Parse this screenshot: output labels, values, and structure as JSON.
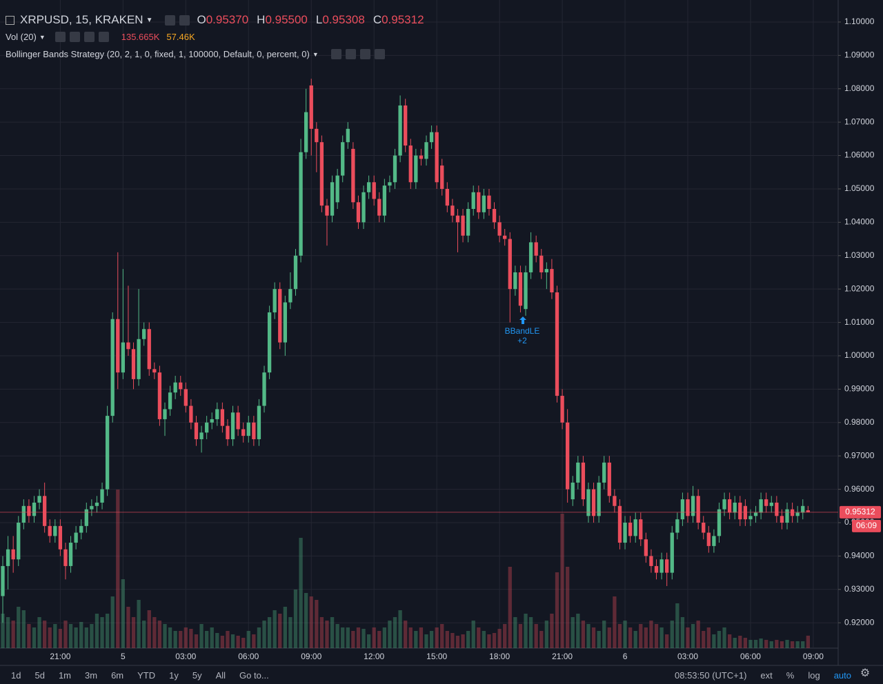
{
  "header": {
    "symbol": "XRPUSD, 15, KRAKEN",
    "ohlc": [
      {
        "label": "O",
        "value": "0.95370"
      },
      {
        "label": "H",
        "value": "0.95500"
      },
      {
        "label": "L",
        "value": "0.95308"
      },
      {
        "label": "C",
        "value": "0.95312"
      }
    ],
    "volume_title": "Vol (20)",
    "volume_values": [
      "135.665K",
      "57.46K"
    ],
    "strategy": "Bollinger Bands Strategy (20, 2, 1, 0, fixed, 1, 100000, Default, 0, percent, 0)"
  },
  "annotation": {
    "text": "BBandLE",
    "sub": "+2"
  },
  "price_tag": {
    "label": "0.95312",
    "countdown": "06:09"
  },
  "toolbar": {
    "ranges": [
      "1d",
      "5d",
      "1m",
      "3m",
      "6m",
      "YTD",
      "1y",
      "5y",
      "All",
      "Go to..."
    ],
    "clock": "08:53:50 (UTC+1)",
    "options": [
      "ext",
      "%",
      "log",
      "auto"
    ]
  },
  "chart_data": {
    "type": "candlestick",
    "up_color": "#53b987",
    "down_color": "#eb4d5c",
    "grid": true,
    "xlim": [
      -0.53,
      159.76
    ],
    "ylim": [
      0.9124,
      1.1066
    ],
    "vlim": [
      0,
      2250000
    ],
    "xticks": [
      {
        "value": 11,
        "label": "21:00"
      },
      {
        "value": 23,
        "label": "5"
      },
      {
        "value": 35,
        "label": "03:00"
      },
      {
        "value": 47,
        "label": "06:00"
      },
      {
        "value": 59,
        "label": "09:00"
      },
      {
        "value": 71,
        "label": "12:00"
      },
      {
        "value": 83,
        "label": "15:00"
      },
      {
        "value": 95,
        "label": "18:00"
      },
      {
        "value": 107,
        "label": "21:00"
      },
      {
        "value": 119,
        "label": "6"
      },
      {
        "value": 131,
        "label": "03:00"
      },
      {
        "value": 143,
        "label": "06:00"
      },
      {
        "value": 155,
        "label": "09:00"
      }
    ],
    "yticks": [
      {
        "value": 0.92,
        "label": "0.92000"
      },
      {
        "value": 0.93,
        "label": "0.93000"
      },
      {
        "value": 0.94,
        "label": "0.94000"
      },
      {
        "value": 0.95,
        "label": "0.95000"
      },
      {
        "value": 0.96,
        "label": "0.96000"
      },
      {
        "value": 0.97,
        "label": "0.97000"
      },
      {
        "value": 0.98,
        "label": "0.98000"
      },
      {
        "value": 0.99,
        "label": "0.99000"
      },
      {
        "value": 1.0,
        "label": "1.00000"
      },
      {
        "value": 1.01,
        "label": "1.01000"
      },
      {
        "value": 1.02,
        "label": "1.02000"
      },
      {
        "value": 1.03,
        "label": "1.03000"
      },
      {
        "value": 1.04,
        "label": "1.04000"
      },
      {
        "value": 1.05,
        "label": "1.05000"
      },
      {
        "value": 1.06,
        "label": "1.06000"
      },
      {
        "value": 1.07,
        "label": "1.07000"
      },
      {
        "value": 1.08,
        "label": "1.08000"
      },
      {
        "value": 1.09,
        "label": "1.09000"
      },
      {
        "value": 1.1,
        "label": "1.10000"
      }
    ],
    "open": [
      0.928,
      0.937,
      0.942,
      0.939,
      0.95,
      0.955,
      0.952,
      0.956,
      0.958,
      0.949,
      0.946,
      0.949,
      0.942,
      0.937,
      0.944,
      0.947,
      0.949,
      0.954,
      0.955,
      0.956,
      0.96,
      0.982,
      1.011,
      0.995,
      1.004,
      1.002,
      0.993,
      1.005,
      1.008,
      0.996,
      0.995,
      0.981,
      0.984,
      0.989,
      0.992,
      0.99,
      0.985,
      0.98,
      0.975,
      0.977,
      0.98,
      0.981,
      0.984,
      0.979,
      0.975,
      0.983,
      0.978,
      0.976,
      0.98,
      0.975,
      0.985,
      0.995,
      1.013,
      1.02,
      1.004,
      1.016,
      1.02,
      1.03,
      1.061,
      1.081,
      1.068,
      1.064,
      1.045,
      1.042,
      1.046,
      1.054,
      1.064,
      1.062,
      1.046,
      1.04,
      1.049,
      1.052,
      1.047,
      1.042,
      1.051,
      1.052,
      1.06,
      1.075,
      1.063,
      1.052,
      1.06,
      1.059,
      1.064,
      1.067,
      1.057,
      1.05,
      1.045,
      1.042,
      1.042,
      1.036,
      1.044,
      1.049,
      1.043,
      1.048,
      1.044,
      1.04,
      1.036,
      1.035,
      1.02,
      1.025,
      1.014,
      1.025,
      1.034,
      1.03,
      1.025,
      1.026,
      1.019,
      0.988,
      0.98,
      0.957,
      0.962,
      0.968,
      0.952,
      0.96,
      0.952,
      0.962,
      0.968,
      0.958,
      0.955,
      0.944,
      0.95,
      0.946,
      0.951,
      0.945,
      0.94,
      0.937,
      0.935,
      0.939,
      0.935,
      0.947,
      0.951,
      0.957,
      0.952,
      0.958,
      0.95,
      0.947,
      0.943,
      0.946,
      0.954,
      0.957,
      0.953,
      0.956,
      0.955,
      0.951,
      0.952,
      0.953,
      0.957,
      0.955,
      0.956,
      0.952,
      0.95,
      0.954,
      0.952,
      0.953,
      0.9537
    ],
    "high": [
      0.94,
      0.946,
      0.946,
      0.952,
      0.957,
      0.957,
      0.958,
      0.96,
      0.962,
      0.951,
      0.951,
      0.951,
      0.944,
      0.946,
      0.949,
      0.951,
      0.956,
      0.957,
      0.958,
      0.962,
      0.985,
      1.013,
      1.031,
      1.026,
      1.021,
      1.004,
      1.02,
      1.01,
      1.01,
      0.998,
      0.997,
      0.986,
      0.991,
      0.994,
      0.994,
      0.992,
      0.987,
      0.982,
      0.979,
      0.982,
      0.983,
      0.986,
      0.986,
      0.981,
      0.985,
      0.985,
      0.98,
      0.982,
      0.982,
      0.987,
      0.997,
      1.015,
      1.022,
      1.022,
      1.018,
      1.025,
      1.032,
      1.065,
      1.08,
      1.083,
      1.07,
      1.066,
      1.047,
      1.054,
      1.056,
      1.066,
      1.07,
      1.064,
      1.048,
      1.051,
      1.054,
      1.054,
      1.049,
      1.053,
      1.054,
      1.062,
      1.078,
      1.077,
      1.065,
      1.062,
      1.062,
      1.066,
      1.069,
      1.069,
      1.059,
      1.052,
      1.047,
      1.044,
      1.044,
      1.046,
      1.051,
      1.051,
      1.05,
      1.05,
      1.046,
      1.042,
      1.038,
      1.037,
      1.027,
      1.027,
      1.027,
      1.037,
      1.036,
      1.032,
      1.028,
      1.029,
      1.021,
      0.99,
      0.984,
      0.964,
      0.97,
      0.97,
      0.962,
      0.962,
      0.964,
      0.97,
      0.97,
      0.96,
      0.957,
      0.952,
      0.952,
      0.953,
      0.953,
      0.947,
      0.942,
      0.939,
      0.941,
      0.941,
      0.949,
      0.953,
      0.959,
      0.959,
      0.961,
      0.96,
      0.952,
      0.949,
      0.948,
      0.956,
      0.959,
      0.959,
      0.958,
      0.958,
      0.957,
      0.954,
      0.955,
      0.959,
      0.959,
      0.958,
      0.958,
      0.954,
      0.956,
      0.956,
      0.955,
      0.957,
      0.955
    ],
    "low": [
      0.92,
      0.93,
      0.935,
      0.937,
      0.948,
      0.95,
      0.95,
      0.954,
      0.947,
      0.944,
      0.944,
      0.94,
      0.933,
      0.935,
      0.942,
      0.945,
      0.947,
      0.952,
      0.953,
      0.954,
      0.958,
      0.98,
      0.99,
      0.993,
      1.0,
      0.99,
      0.991,
      1.003,
      0.994,
      0.993,
      0.979,
      0.976,
      0.982,
      0.987,
      0.988,
      0.983,
      0.978,
      0.973,
      0.971,
      0.975,
      0.978,
      0.979,
      0.977,
      0.973,
      0.973,
      0.976,
      0.974,
      0.974,
      0.973,
      0.973,
      0.983,
      0.993,
      1.011,
      1.002,
      1.0,
      1.014,
      1.018,
      1.028,
      1.059,
      1.06,
      1.055,
      1.043,
      1.033,
      1.04,
      1.044,
      1.052,
      1.062,
      1.044,
      1.038,
      1.038,
      1.047,
      1.045,
      1.04,
      1.04,
      1.049,
      1.05,
      1.058,
      1.061,
      1.05,
      1.05,
      1.057,
      1.057,
      1.062,
      1.05,
      1.048,
      1.043,
      1.04,
      1.031,
      1.034,
      1.034,
      1.042,
      1.041,
      1.041,
      1.042,
      1.038,
      1.034,
      1.033,
      1.01,
      1.018,
      1.013,
      1.012,
      1.023,
      1.028,
      1.023,
      1.02,
      1.017,
      0.986,
      0.978,
      0.956,
      0.955,
      0.96,
      0.955,
      0.95,
      0.95,
      0.95,
      0.96,
      0.956,
      0.953,
      0.942,
      0.942,
      0.944,
      0.944,
      0.943,
      0.938,
      0.935,
      0.933,
      0.933,
      0.931,
      0.933,
      0.945,
      0.949,
      0.95,
      0.95,
      0.948,
      0.945,
      0.941,
      0.941,
      0.944,
      0.952,
      0.951,
      0.951,
      0.949,
      0.949,
      0.949,
      0.95,
      0.951,
      0.953,
      0.953,
      0.95,
      0.948,
      0.948,
      0.95,
      0.95,
      0.951,
      0.95308
    ],
    "close": [
      0.937,
      0.942,
      0.939,
      0.95,
      0.955,
      0.952,
      0.956,
      0.958,
      0.949,
      0.946,
      0.949,
      0.942,
      0.937,
      0.944,
      0.947,
      0.949,
      0.954,
      0.955,
      0.956,
      0.96,
      0.982,
      1.011,
      0.995,
      1.004,
      1.002,
      0.993,
      1.005,
      1.008,
      0.996,
      0.995,
      0.981,
      0.984,
      0.989,
      0.992,
      0.99,
      0.985,
      0.98,
      0.975,
      0.977,
      0.98,
      0.981,
      0.984,
      0.979,
      0.975,
      0.983,
      0.978,
      0.976,
      0.98,
      0.975,
      0.985,
      0.995,
      1.013,
      1.02,
      1.004,
      1.016,
      1.02,
      1.03,
      1.061,
      1.073,
      1.068,
      1.064,
      1.045,
      1.042,
      1.052,
      1.054,
      1.064,
      1.068,
      1.046,
      1.04,
      1.049,
      1.052,
      1.047,
      1.042,
      1.051,
      1.052,
      1.06,
      1.075,
      1.063,
      1.052,
      1.06,
      1.059,
      1.064,
      1.067,
      1.052,
      1.05,
      1.045,
      1.042,
      1.04,
      1.036,
      1.044,
      1.049,
      1.043,
      1.048,
      1.044,
      1.04,
      1.036,
      1.035,
      1.02,
      1.025,
      1.015,
      1.025,
      1.034,
      1.03,
      1.025,
      1.026,
      1.019,
      0.988,
      0.98,
      0.96,
      0.962,
      0.968,
      0.957,
      0.96,
      0.952,
      0.962,
      0.968,
      0.958,
      0.955,
      0.944,
      0.95,
      0.946,
      0.951,
      0.945,
      0.94,
      0.937,
      0.935,
      0.939,
      0.935,
      0.947,
      0.951,
      0.957,
      0.952,
      0.958,
      0.95,
      0.947,
      0.943,
      0.946,
      0.954,
      0.957,
      0.953,
      0.956,
      0.951,
      0.951,
      0.952,
      0.953,
      0.957,
      0.955,
      0.956,
      0.952,
      0.95,
      0.954,
      0.952,
      0.953,
      0.955,
      0.95312
    ],
    "volume": [
      375000,
      337500,
      300000,
      450000,
      412500,
      262500,
      225000,
      337500,
      300000,
      225000,
      262500,
      210000,
      300000,
      262500,
      225000,
      285000,
      225000,
      262500,
      375000,
      337500,
      375000,
      562500,
      1725000,
      750000,
      450000,
      337500,
      525000,
      300000,
      412500,
      337500,
      300000,
      262500,
      225000,
      187500,
      187500,
      225000,
      210000,
      150000,
      262500,
      187500,
      225000,
      165000,
      135000,
      187500,
      150000,
      135000,
      112500,
      187500,
      150000,
      225000,
      300000,
      337500,
      412500,
      375000,
      450000,
      337500,
      637500,
      1200000,
      600000,
      562500,
      525000,
      337500,
      300000,
      337500,
      262500,
      225000,
      225000,
      187500,
      225000,
      210000,
      150000,
      225000,
      187500,
      225000,
      300000,
      337500,
      412500,
      300000,
      225000,
      187500,
      225000,
      150000,
      187500,
      225000,
      262500,
      187500,
      165000,
      135000,
      150000,
      187500,
      300000,
      225000,
      187500,
      150000,
      165000,
      210000,
      262500,
      885000,
      337500,
      262500,
      375000,
      337500,
      262500,
      187500,
      300000,
      375000,
      825000,
      1462500,
      885000,
      337500,
      375000,
      300000,
      262500,
      225000,
      187500,
      300000,
      225000,
      562500,
      262500,
      300000,
      225000,
      187500,
      262500,
      225000,
      300000,
      262500,
      225000,
      150000,
      300000,
      487500,
      337500,
      225000,
      262500,
      300000,
      187500,
      225000,
      150000,
      187500,
      225000,
      150000,
      112500,
      135000,
      112500,
      90000,
      90000,
      105000,
      90000,
      75000,
      90000,
      75000,
      90000,
      75000,
      75000,
      75000,
      135665
    ]
  }
}
